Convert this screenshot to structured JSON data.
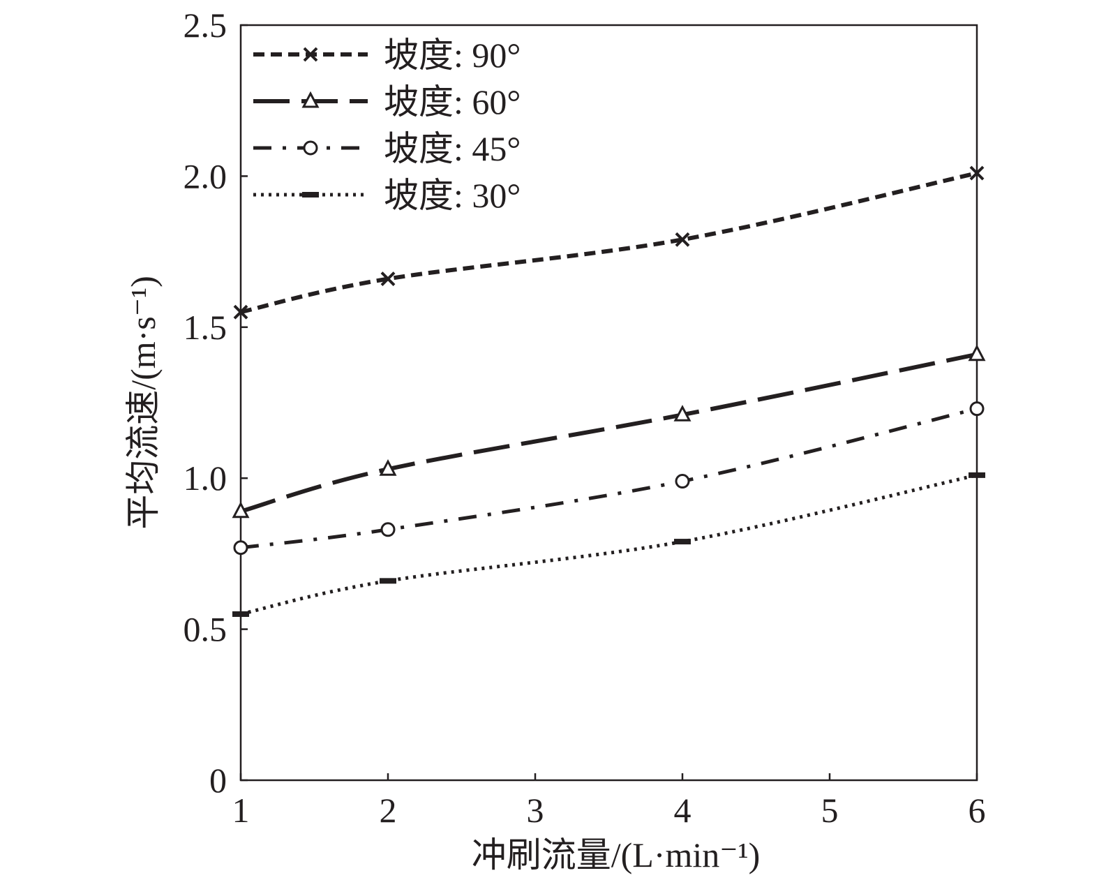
{
  "chart_data": {
    "type": "line",
    "xlabel": "冲刷流量/(L·min⁻¹)",
    "ylabel": "平均流速/(m·s⁻¹)",
    "xlim": [
      1,
      6
    ],
    "ylim": [
      0,
      2.5
    ],
    "x_ticks": [
      "1",
      "2",
      "3",
      "4",
      "5",
      "6"
    ],
    "y_ticks": [
      "0",
      "0.5",
      "1.0",
      "1.5",
      "2.0",
      "2.5"
    ],
    "grid": false,
    "legend_position": "top-left",
    "series": [
      {
        "name": "坡度: 90°",
        "marker": "x",
        "style": "short-dash",
        "x": [
          1,
          2,
          4,
          6
        ],
        "y": [
          1.55,
          1.66,
          1.79,
          2.01
        ]
      },
      {
        "name": "坡度: 60°",
        "marker": "triangle",
        "style": "long-dash",
        "x": [
          1,
          2,
          4,
          6
        ],
        "y": [
          0.89,
          1.03,
          1.21,
          1.41
        ]
      },
      {
        "name": "坡度: 45°",
        "marker": "circle",
        "style": "dash-dot",
        "x": [
          1,
          2,
          4,
          6
        ],
        "y": [
          0.77,
          0.83,
          0.99,
          1.23
        ]
      },
      {
        "name": "坡度: 30°",
        "marker": "dash",
        "style": "dotted",
        "x": [
          1,
          2,
          4,
          6
        ],
        "y": [
          0.55,
          0.66,
          0.79,
          1.01
        ]
      }
    ]
  }
}
